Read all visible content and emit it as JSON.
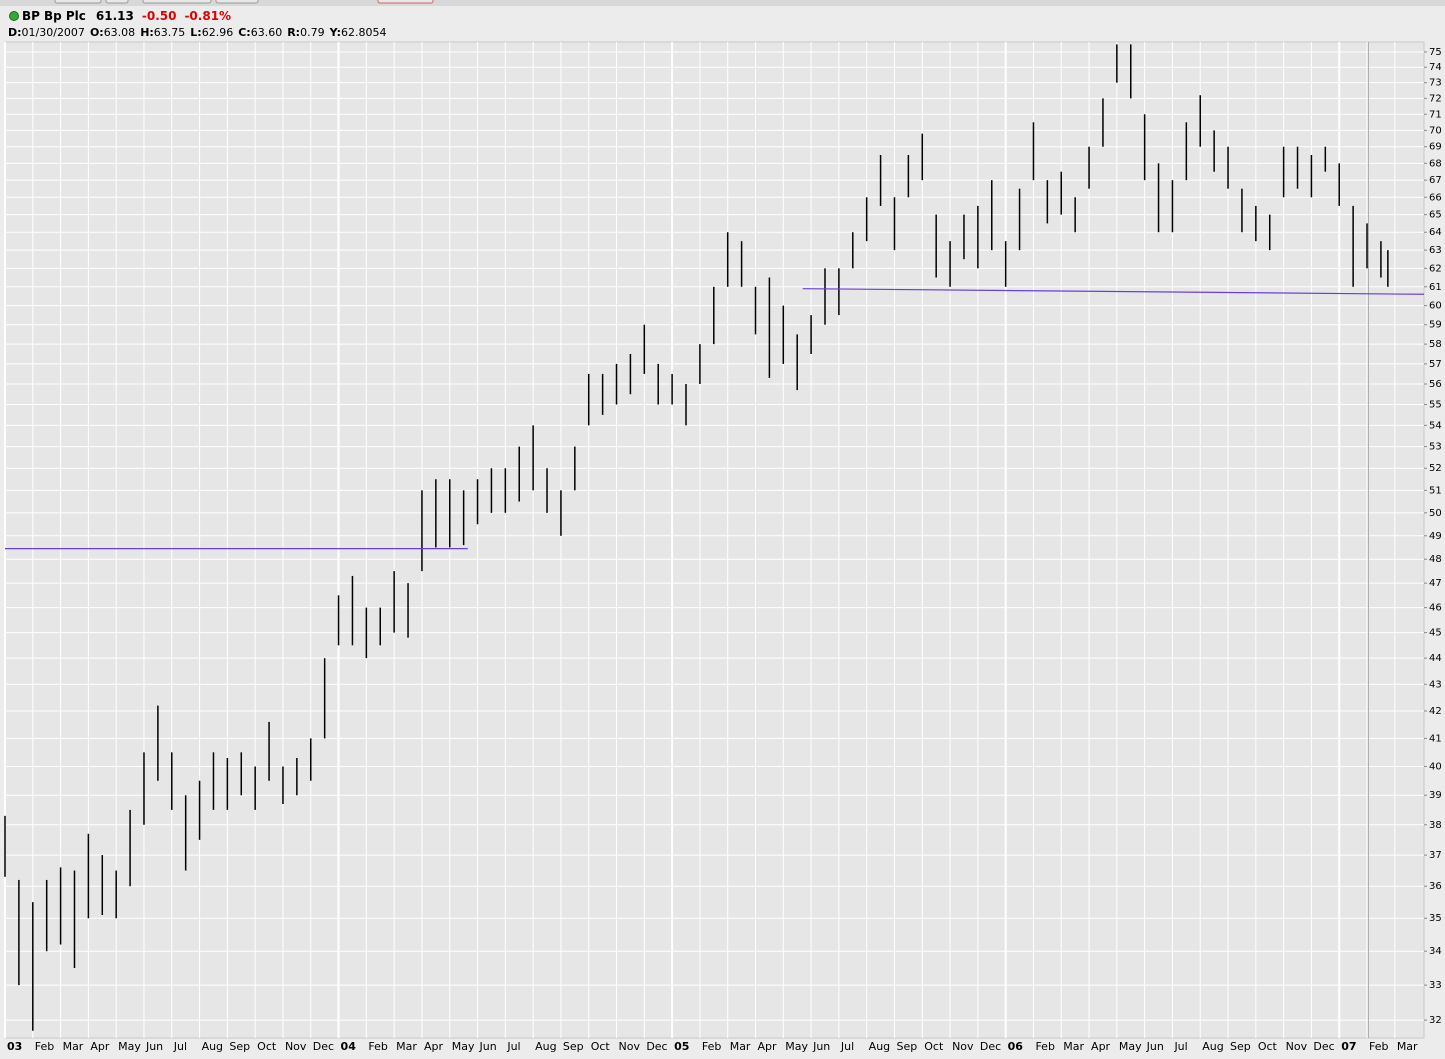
{
  "header": {
    "symbol": "BP",
    "name": "Bp Plc",
    "last": "61.13",
    "change": "-0.50",
    "change_pct": "-0.81%",
    "quote": [
      {
        "key": "D:",
        "value": "01/30/2007"
      },
      {
        "key": "O:",
        "value": "63.08"
      },
      {
        "key": "H:",
        "value": "63.75"
      },
      {
        "key": "L:",
        "value": "62.96"
      },
      {
        "key": "C:",
        "value": "63.60"
      },
      {
        "key": "R:",
        "value": "0.79"
      },
      {
        "key": "Y:",
        "value": "62.8054"
      }
    ]
  },
  "chart_data": {
    "type": "range_bar",
    "color": "#000000",
    "log_scale": true,
    "grid": true,
    "x": [
      0,
      0.5,
      1,
      1.5,
      2,
      2.5,
      3,
      3.5,
      4,
      4.5,
      5,
      5.5,
      6,
      6.5,
      7,
      7.5,
      8,
      8.5,
      9,
      9.5,
      10,
      10.5,
      11,
      11.5,
      12,
      12.5,
      13,
      13.5,
      14,
      14.5,
      15,
      15.5,
      16,
      16.5,
      17,
      17.5,
      18,
      18.5,
      19,
      19.5,
      20,
      20.5,
      21,
      21.5,
      22,
      22.5,
      23,
      23.5,
      24,
      24.5,
      25,
      25.5,
      26,
      26.5,
      27,
      27.5,
      28,
      28.5,
      29,
      29.5,
      30,
      30.5,
      31,
      31.5,
      32,
      32.5,
      33,
      33.5,
      34,
      34.5,
      35,
      35.5,
      36,
      36.5,
      37,
      37.5,
      38,
      38.5,
      39,
      39.5,
      40,
      40.5,
      41,
      41.5,
      42,
      42.5,
      43,
      43.5,
      44,
      44.5,
      45,
      45.5,
      46,
      46.5,
      47,
      47.5,
      48,
      48.5,
      49,
      49.5,
      49.75
    ],
    "high": [
      38.3,
      36.2,
      35.5,
      36.2,
      36.6,
      36.5,
      37.7,
      37.0,
      36.5,
      38.5,
      40.5,
      42.2,
      40.5,
      39.0,
      39.5,
      40.5,
      40.3,
      40.5,
      40.0,
      41.6,
      40.0,
      40.3,
      41.0,
      44.0,
      46.5,
      47.3,
      46.0,
      46.0,
      47.5,
      47.0,
      51.0,
      51.5,
      51.5,
      51.0,
      51.5,
      52.0,
      52.0,
      53.0,
      54.0,
      52.0,
      51.0,
      53.0,
      56.5,
      56.5,
      57.0,
      57.5,
      59.0,
      57.0,
      56.5,
      56.0,
      58.0,
      61.0,
      64.0,
      63.5,
      61.0,
      61.5,
      60.0,
      58.5,
      59.5,
      62.0,
      62.0,
      64.0,
      66.0,
      68.5,
      66.0,
      68.5,
      69.8,
      65.0,
      63.5,
      65.0,
      65.5,
      67.0,
      63.5,
      66.5,
      70.5,
      67.0,
      67.5,
      66.0,
      69.0,
      72.0,
      75.5,
      75.5,
      71.0,
      68.0,
      67.0,
      70.5,
      72.2,
      70.0,
      69.0,
      66.5,
      65.5,
      65.0,
      69.0,
      69.0,
      68.5,
      69.0,
      68.0,
      65.5,
      64.5,
      63.5,
      63.0
    ],
    "low": [
      36.3,
      33.0,
      31.7,
      34.0,
      34.2,
      33.5,
      35.0,
      35.1,
      35.0,
      36.0,
      38.0,
      39.5,
      38.5,
      36.5,
      37.5,
      38.5,
      38.5,
      39.0,
      38.5,
      39.5,
      38.7,
      39.0,
      39.5,
      41.0,
      44.5,
      44.5,
      44.0,
      44.5,
      45.0,
      44.8,
      47.5,
      48.5,
      48.5,
      48.6,
      49.5,
      50.0,
      50.0,
      50.5,
      51.0,
      50.0,
      49.0,
      51.0,
      54.0,
      54.5,
      55.0,
      55.5,
      56.5,
      55.0,
      55.0,
      54.0,
      56.0,
      58.0,
      61.0,
      61.0,
      58.5,
      56.3,
      57.0,
      55.7,
      57.5,
      59.0,
      59.5,
      62.0,
      63.5,
      65.5,
      63.0,
      66.0,
      67.0,
      61.5,
      61.0,
      62.5,
      62.0,
      63.0,
      61.0,
      63.0,
      67.0,
      64.5,
      65.0,
      64.0,
      66.5,
      69.0,
      73.0,
      72.0,
      67.0,
      64.0,
      64.0,
      67.0,
      69.0,
      67.5,
      66.5,
      64.0,
      63.5,
      63.0,
      66.0,
      66.5,
      66.0,
      67.5,
      65.5,
      61.0,
      62.0,
      61.5,
      61.0
    ],
    "trendlines": [
      {
        "color": "#6a3fd8",
        "x": [
          0,
          16.65
        ],
        "y": [
          48.45,
          48.45
        ]
      },
      {
        "color": "#6a3fd8",
        "x": [
          28.7,
          51.05
        ],
        "y": [
          60.9,
          60.6
        ]
      }
    ],
    "cursor_x": 49.05,
    "xlim": [
      0,
      51.05
    ],
    "xticks": [
      {
        "value": 0,
        "label": "03"
      },
      {
        "value": 1,
        "label": "Feb"
      },
      {
        "value": 2,
        "label": "Mar"
      },
      {
        "value": 3,
        "label": "Apr"
      },
      {
        "value": 4,
        "label": "May"
      },
      {
        "value": 5,
        "label": "Jun"
      },
      {
        "value": 6,
        "label": "Jul"
      },
      {
        "value": 7,
        "label": "Aug"
      },
      {
        "value": 8,
        "label": "Sep"
      },
      {
        "value": 9,
        "label": "Oct"
      },
      {
        "value": 10,
        "label": "Nov"
      },
      {
        "value": 11,
        "label": "Dec"
      },
      {
        "value": 12,
        "label": "04"
      },
      {
        "value": 13,
        "label": "Feb"
      },
      {
        "value": 14,
        "label": "Mar"
      },
      {
        "value": 15,
        "label": "Apr"
      },
      {
        "value": 16,
        "label": "May"
      },
      {
        "value": 17,
        "label": "Jun"
      },
      {
        "value": 18,
        "label": "Jul"
      },
      {
        "value": 19,
        "label": "Aug"
      },
      {
        "value": 20,
        "label": "Sep"
      },
      {
        "value": 21,
        "label": "Oct"
      },
      {
        "value": 22,
        "label": "Nov"
      },
      {
        "value": 23,
        "label": "Dec"
      },
      {
        "value": 24,
        "label": "05"
      },
      {
        "value": 25,
        "label": "Feb"
      },
      {
        "value": 26,
        "label": "Mar"
      },
      {
        "value": 27,
        "label": "Apr"
      },
      {
        "value": 28,
        "label": "May"
      },
      {
        "value": 29,
        "label": "Jun"
      },
      {
        "value": 30,
        "label": "Jul"
      },
      {
        "value": 31,
        "label": "Aug"
      },
      {
        "value": 32,
        "label": "Sep"
      },
      {
        "value": 33,
        "label": "Oct"
      },
      {
        "value": 34,
        "label": "Nov"
      },
      {
        "value": 35,
        "label": "Dec"
      },
      {
        "value": 36,
        "label": "06"
      },
      {
        "value": 37,
        "label": "Feb"
      },
      {
        "value": 38,
        "label": "Mar"
      },
      {
        "value": 39,
        "label": "Apr"
      },
      {
        "value": 40,
        "label": "May"
      },
      {
        "value": 41,
        "label": "Jun"
      },
      {
        "value": 42,
        "label": "Jul"
      },
      {
        "value": 43,
        "label": "Aug"
      },
      {
        "value": 44,
        "label": "Sep"
      },
      {
        "value": 45,
        "label": "Oct"
      },
      {
        "value": 46,
        "label": "Nov"
      },
      {
        "value": 47,
        "label": "Dec"
      },
      {
        "value": 48,
        "label": "07"
      },
      {
        "value": 49,
        "label": "Feb"
      },
      {
        "value": 50,
        "label": "Mar"
      }
    ],
    "ylim": [
      31.5,
      75.66
    ],
    "yticks": [
      32,
      33,
      34,
      35,
      36,
      37,
      38,
      39,
      40,
      41,
      42,
      43,
      44,
      45,
      46,
      47,
      48,
      49,
      50,
      51,
      52,
      53,
      54,
      55,
      56,
      57,
      58,
      59,
      60,
      61,
      62,
      63,
      64,
      65,
      66,
      67,
      68,
      69,
      70,
      71,
      72,
      73,
      74,
      75
    ]
  }
}
